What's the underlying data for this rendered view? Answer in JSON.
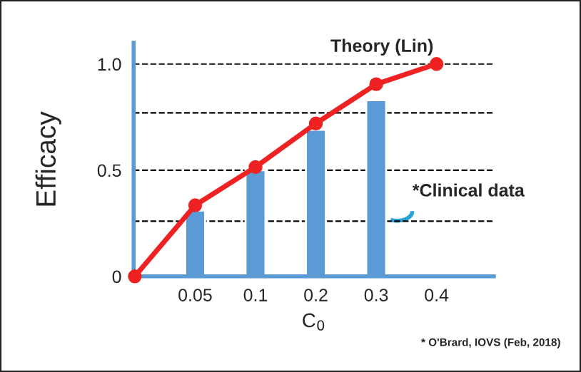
{
  "chart_data": {
    "type": "bar",
    "categories": [
      null,
      "0.05",
      "0.1",
      "0.2",
      "0.3",
      "0.4"
    ],
    "series": [
      {
        "name": "*Clinical data",
        "color": "#5b9bd5",
        "values": [
          null,
          0.31,
          0.5,
          0.69,
          0.83,
          null
        ]
      },
      {
        "name": "Theory (Lin)",
        "type": "line",
        "color": "#ee2222",
        "marker": "circle",
        "line_style": "solid",
        "values": [
          0,
          0.335,
          0.515,
          0.72,
          0.905,
          1.0
        ]
      }
    ],
    "xlabel": "C$_{0}$",
    "ylabel": "Efficacy",
    "ylim": [
      0,
      1.1
    ],
    "yticks": [
      0,
      0.5,
      {
        "value": 1.0,
        "label": "1.0"
      }
    ],
    "ref_lines": [
      {
        "axis": "y",
        "value": 1.0,
        "line_style": "dashed",
        "color": "#333333"
      },
      {
        "axis": "y",
        "value": 0.77,
        "line_style": "dashed",
        "color": "#000000"
      },
      {
        "axis": "y",
        "value": 0.5,
        "line_style": "dashed",
        "color": "#000000"
      },
      {
        "axis": "y",
        "value": 0.26,
        "line_style": "dashed",
        "color": "#000000"
      }
    ],
    "annotations": [
      "* O'Brard, IOVS (Feb, 2018)"
    ],
    "grid": false,
    "legend": false
  }
}
